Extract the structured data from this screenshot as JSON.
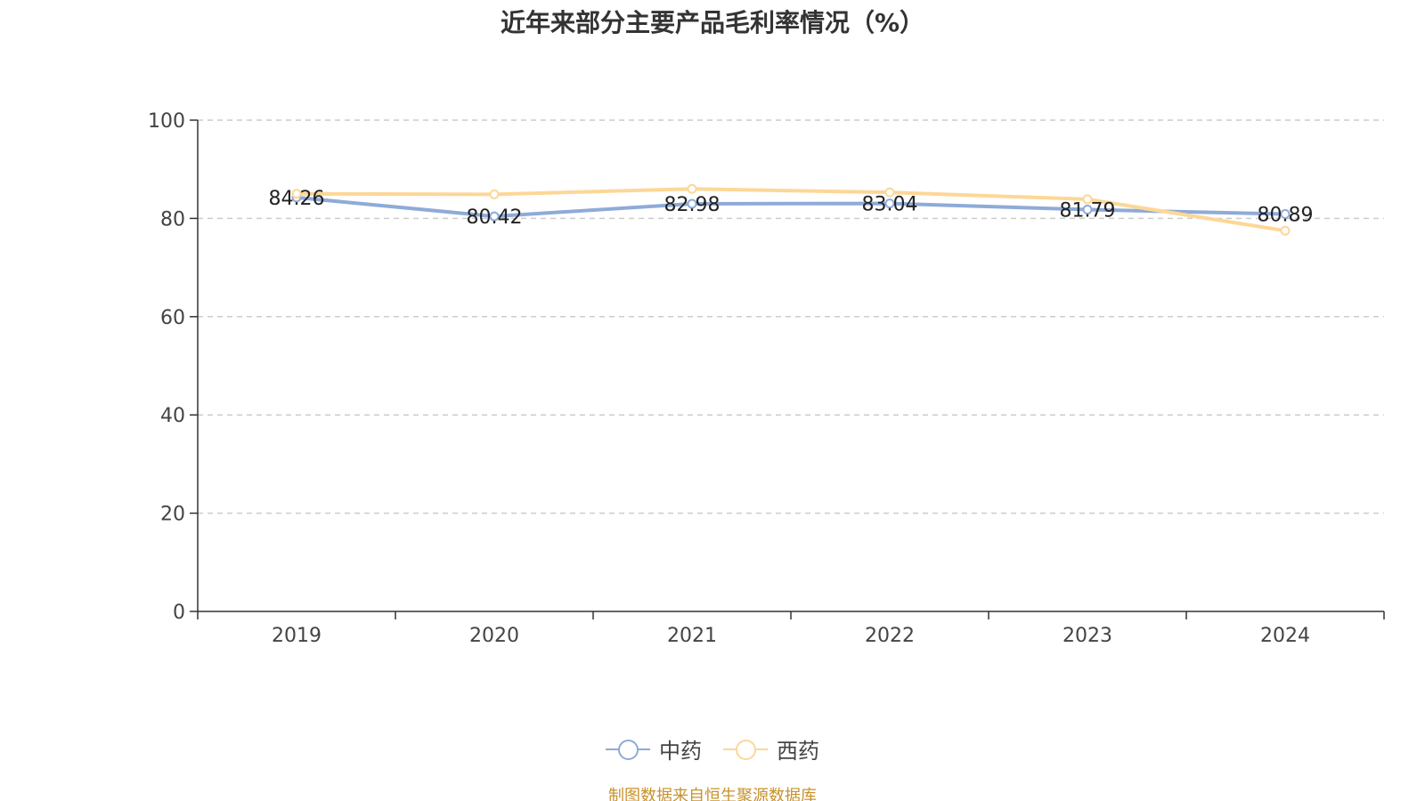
{
  "chart_data": {
    "type": "line",
    "title": "近年来部分主要产品毛利率情况（%）",
    "categories": [
      "2019",
      "2020",
      "2021",
      "2022",
      "2023",
      "2024"
    ],
    "ylim": [
      0,
      100
    ],
    "yticks": [
      "0",
      "20",
      "40",
      "60",
      "80",
      "100"
    ],
    "grid": true,
    "legend_position": "bottom",
    "series": [
      {
        "name": "中药",
        "color": "#8eabd8",
        "values": [
          84.26,
          80.42,
          82.98,
          83.04,
          81.79,
          80.89
        ],
        "labels": [
          "84.26",
          "80.42",
          "82.98",
          "83.04",
          "81.79",
          "80.89"
        ]
      },
      {
        "name": "西药",
        "color": "#fdd797",
        "values": [
          85.0,
          84.9,
          86.0,
          85.3,
          83.9,
          77.5
        ]
      }
    ]
  },
  "source": "制图数据来自恒生聚源数据库"
}
